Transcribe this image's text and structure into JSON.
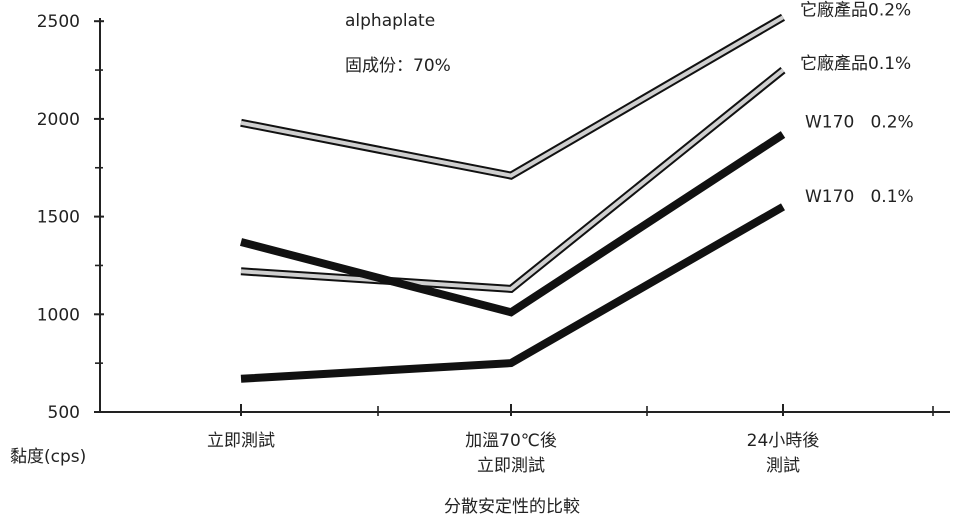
{
  "chart_data": {
    "type": "line",
    "title": "alphaplate",
    "subtitle": "固成份：70%",
    "xlabel": "分散安定性的比較",
    "ylabel": "黏度(cps)",
    "categories": [
      [
        "立即測試"
      ],
      [
        "加溫70℃後",
        "立即測試"
      ],
      [
        "24小時後",
        "測試"
      ]
    ],
    "yticks": [
      500,
      1000,
      1500,
      2000,
      2500
    ],
    "ylim": [
      500,
      2550
    ],
    "grid": false,
    "legend": "labels at right end of each line",
    "series": [
      {
        "name": "它廠產品0.2%",
        "values": [
          1980,
          1710,
          2520
        ],
        "style": "hollow"
      },
      {
        "name": "它廠產品0.1%",
        "values": [
          1220,
          1130,
          2250
        ],
        "style": "hollow"
      },
      {
        "name": "W170   0.2%",
        "values": [
          1370,
          1010,
          1920
        ],
        "style": "solid"
      },
      {
        "name": "W170   0.1%",
        "values": [
          670,
          750,
          1550
        ],
        "style": "solid"
      }
    ]
  }
}
